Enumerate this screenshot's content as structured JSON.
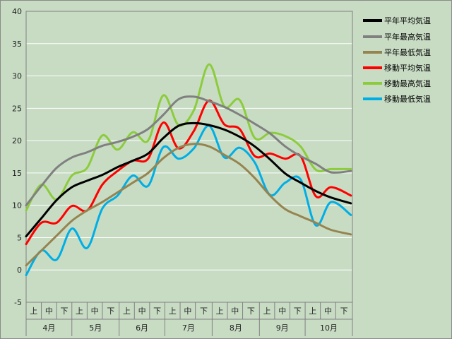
{
  "chart_data": {
    "type": "line",
    "title": "",
    "xlabel": "",
    "ylabel": "",
    "ylim": [
      -5,
      40
    ],
    "yticks": [
      -5,
      0,
      5,
      10,
      15,
      20,
      25,
      30,
      35,
      40
    ],
    "grid": "horizontal",
    "legend_position": "right",
    "x_days": [
      0,
      10,
      20,
      30,
      40,
      50,
      60,
      70,
      80,
      90,
      100,
      110,
      120,
      130,
      140,
      150,
      160,
      170,
      180,
      190,
      200,
      213
    ],
    "months": [
      "4月",
      "5月",
      "6月",
      "7月",
      "8月",
      "9月",
      "10月"
    ],
    "decades": [
      "上",
      "中",
      "下"
    ],
    "series": [
      {
        "name": "平年平均気温",
        "color": "#000000",
        "values": [
          5.2,
          8.0,
          10.8,
          12.8,
          13.8,
          14.7,
          15.9,
          16.9,
          18.0,
          20.4,
          22.3,
          22.7,
          22.4,
          21.7,
          20.6,
          19.1,
          17.1,
          14.9,
          13.5,
          12.2,
          11.2,
          10.3
        ]
      },
      {
        "name": "平年最高気温",
        "color": "#808080",
        "values": [
          10.0,
          13.0,
          15.8,
          17.4,
          18.2,
          19.2,
          19.8,
          20.6,
          21.8,
          24.0,
          26.4,
          26.8,
          26.1,
          25.2,
          24.0,
          22.6,
          21.1,
          19.1,
          17.6,
          16.4,
          15.1,
          15.3
        ]
      },
      {
        "name": "平年最低気温",
        "color": "#968450",
        "values": [
          0.7,
          3.0,
          5.3,
          7.6,
          9.2,
          10.5,
          12.0,
          13.5,
          15.0,
          17.3,
          18.9,
          19.5,
          19.1,
          17.8,
          16.4,
          14.2,
          11.5,
          9.4,
          8.3,
          7.3,
          6.2,
          5.5
        ]
      },
      {
        "name": "移動平均気温",
        "color": "#ff0000",
        "values": [
          4.0,
          7.3,
          7.3,
          9.9,
          9.2,
          13.2,
          15.3,
          16.9,
          17.2,
          22.8,
          18.8,
          21.5,
          26.2,
          22.5,
          21.8,
          17.6,
          18.0,
          17.2,
          17.6,
          11.4,
          12.8,
          11.5
        ]
      },
      {
        "name": "移動最高気温",
        "color": "#8ccc3c",
        "values": [
          9.2,
          13.2,
          10.9,
          14.6,
          15.8,
          20.8,
          18.6,
          21.3,
          20.0,
          27.0,
          22.4,
          24.7,
          31.8,
          25.3,
          26.3,
          20.4,
          21.2,
          20.7,
          19.1,
          15.5,
          15.6,
          15.6
        ]
      },
      {
        "name": "移動最低気温",
        "color": "#00aee6",
        "values": [
          -0.8,
          3.0,
          1.6,
          6.4,
          3.4,
          9.5,
          11.5,
          14.6,
          13.0,
          19.0,
          17.2,
          18.8,
          22.3,
          17.4,
          18.9,
          16.6,
          11.6,
          13.5,
          14.0,
          6.9,
          10.5,
          8.5
        ]
      }
    ]
  },
  "legend": {
    "item1": "平年平均気温",
    "item2": "平年最高気温",
    "item3": "平年最低気温",
    "item4": "移動平均気温",
    "item5": "移動最高気温",
    "item6": "移動最低気温"
  }
}
